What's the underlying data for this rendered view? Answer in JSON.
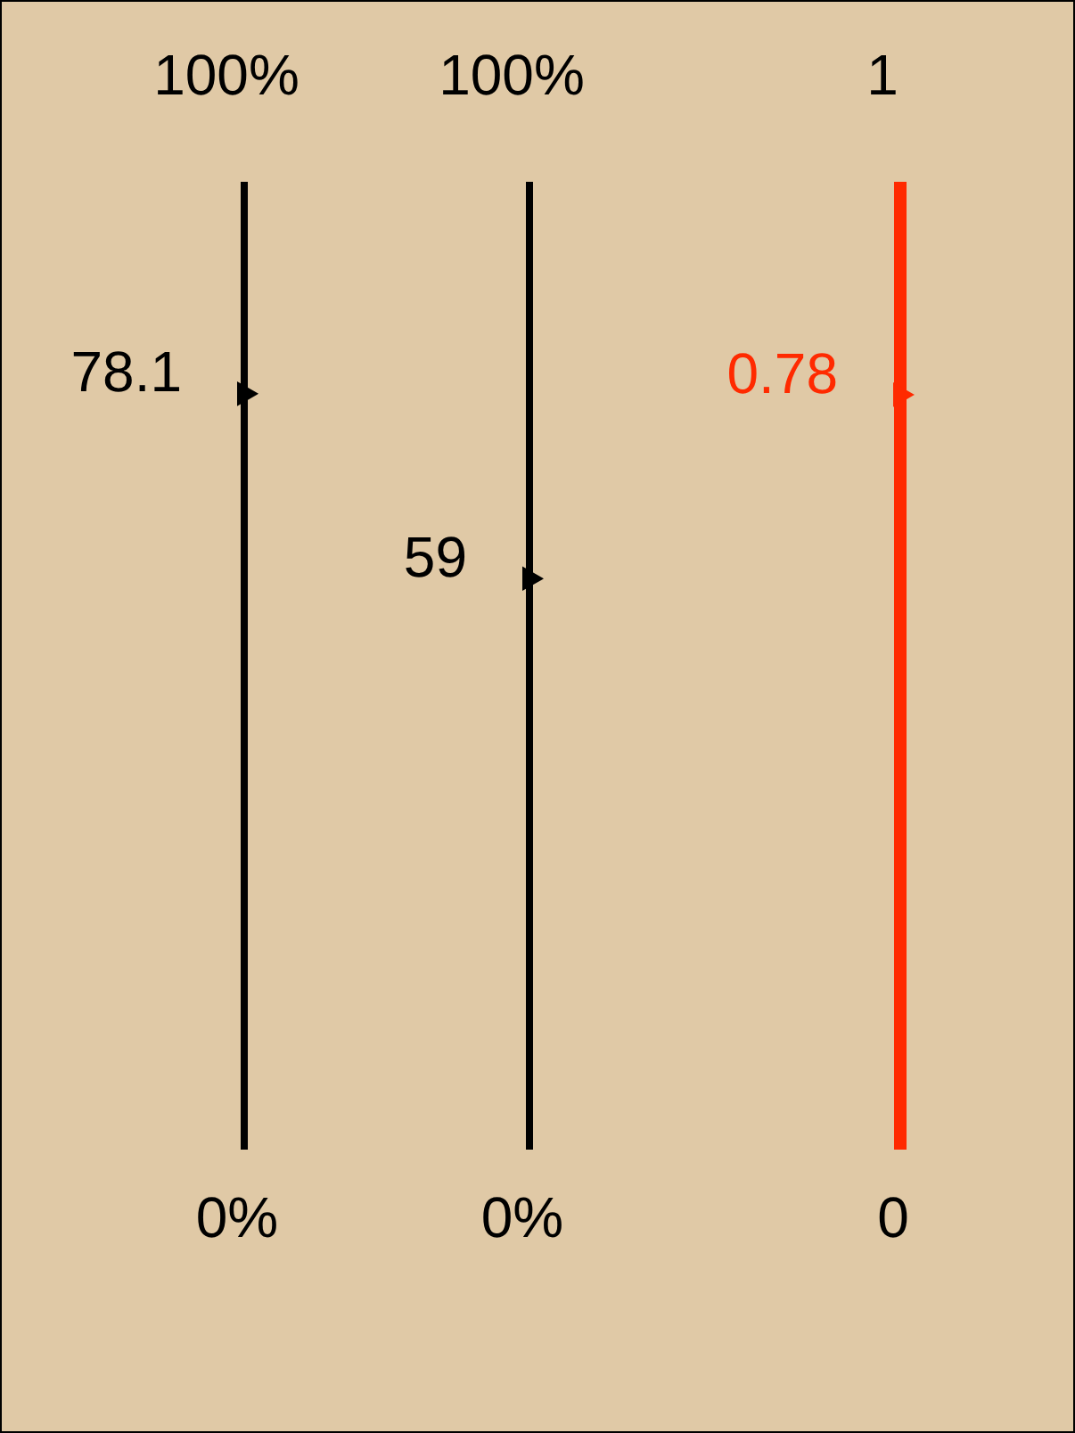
{
  "chart_data": [
    {
      "type": "other",
      "categories": [
        null
      ],
      "values": [
        78.1
      ],
      "color": "#000000",
      "data_labels": true,
      "annotations": [
        "100%",
        "0%"
      ]
    },
    {
      "type": "other",
      "categories": [
        null
      ],
      "values": [
        59
      ],
      "color": "#000000",
      "data_labels": true,
      "annotations": [
        "100%",
        "0%"
      ]
    },
    {
      "type": "other",
      "categories": [
        null
      ],
      "values": [
        0.78
      ],
      "color": "#ff2a00",
      "data_labels": true,
      "annotations": [
        "1",
        "0"
      ]
    }
  ]
}
